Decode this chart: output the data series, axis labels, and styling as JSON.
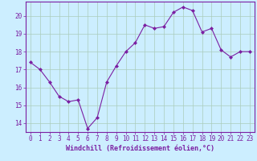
{
  "x": [
    0,
    1,
    2,
    3,
    4,
    5,
    6,
    7,
    8,
    9,
    10,
    11,
    12,
    13,
    14,
    15,
    16,
    17,
    18,
    19,
    20,
    21,
    22,
    23
  ],
  "y": [
    17.4,
    17.0,
    16.3,
    15.5,
    15.2,
    15.3,
    13.7,
    14.3,
    16.3,
    17.2,
    18.0,
    18.5,
    19.5,
    19.3,
    19.4,
    20.2,
    20.5,
    20.3,
    19.1,
    19.3,
    18.1,
    17.7,
    18.0,
    18.0
  ],
  "line_color": "#7b1fa2",
  "marker": "D",
  "marker_size": 2.0,
  "bg_color": "#cceeff",
  "grid_color": "#aaccbb",
  "xlabel": "Windchill (Refroidissement éolien,°C)",
  "xlabel_fontsize": 6.0,
  "tick_fontsize": 5.5,
  "ylim": [
    13.5,
    20.8
  ],
  "yticks": [
    14,
    15,
    16,
    17,
    18,
    19,
    20
  ],
  "xtick_labels": [
    "0",
    "1",
    "2",
    "3",
    "4",
    "5",
    "6",
    "7",
    "8",
    "9",
    "10",
    "11",
    "12",
    "13",
    "14",
    "15",
    "16",
    "17",
    "18",
    "19",
    "20",
    "21",
    "22",
    "23"
  ]
}
